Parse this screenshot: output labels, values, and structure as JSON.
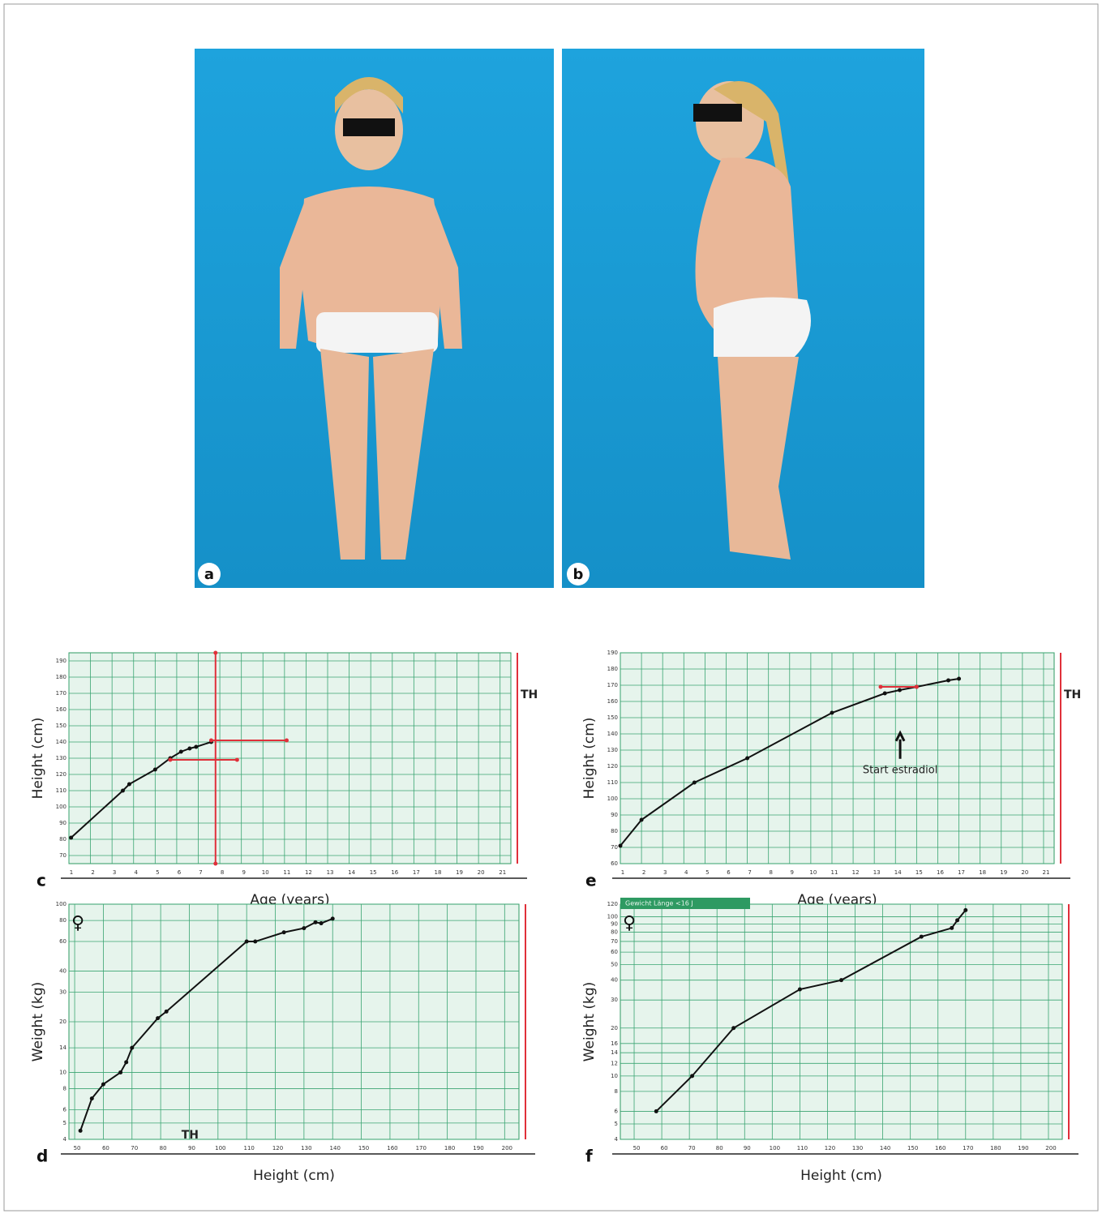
{
  "photos": [
    {
      "label": "a"
    },
    {
      "label": "b"
    }
  ],
  "chart_data": [
    {
      "type": "line",
      "panel_label": "c",
      "x_label": "Age (years)",
      "y_label": "Height (cm)",
      "th_label": "TH",
      "xlim": [
        1,
        21.5
      ],
      "xticks": [
        1,
        2,
        3,
        4,
        5,
        6,
        7,
        8,
        9,
        10,
        11,
        12,
        13,
        14,
        15,
        16,
        17,
        18,
        19,
        20,
        21
      ],
      "ylim": [
        65,
        195
      ],
      "yticks": [
        70,
        80,
        90,
        100,
        110,
        120,
        130,
        140,
        150,
        160,
        170,
        180,
        190
      ],
      "log_y": false,
      "grid": true,
      "series": [
        {
          "color": "#111111",
          "x": [
            1.1,
            3.5,
            3.8,
            5,
            5.7,
            6.2,
            6.6,
            6.9,
            7.6
          ],
          "values": [
            81,
            110,
            114,
            123,
            130,
            134,
            136,
            137,
            140
          ]
        },
        {
          "color": "#e0303a",
          "x": [
            7.6,
            11.1
          ],
          "values": [
            141,
            141
          ]
        },
        {
          "color": "#e0303a",
          "x": [
            5.7,
            8.8
          ],
          "values": [
            129,
            129
          ]
        },
        {
          "color": "#e0303a",
          "x": [
            7.8,
            7.8
          ],
          "values": [
            65,
            195
          ]
        }
      ]
    },
    {
      "type": "line",
      "panel_label": "d",
      "x_label": "Height (cm)",
      "y_label": "Weight (kg)",
      "th_label": "TH",
      "sex_symbol": "♀",
      "xlim": [
        48,
        205
      ],
      "xticks": [
        50,
        60,
        70,
        80,
        90,
        100,
        110,
        120,
        130,
        140,
        150,
        160,
        170,
        180,
        190,
        200
      ],
      "ylim": [
        4,
        100
      ],
      "yticks": [
        4,
        5,
        6,
        8,
        10,
        14,
        20,
        30,
        40,
        60,
        80,
        100
      ],
      "log_y": true,
      "grid": true,
      "series": [
        {
          "color": "#111111",
          "x": [
            52,
            56,
            60,
            66,
            68,
            70,
            79,
            82,
            110,
            113,
            123,
            130,
            134,
            136,
            140
          ],
          "values": [
            4.5,
            7,
            8.5,
            10,
            11.5,
            14,
            21,
            23,
            60,
            60,
            68,
            72,
            78,
            77,
            82
          ]
        }
      ]
    },
    {
      "type": "line",
      "panel_label": "e",
      "x_label": "Age (years)",
      "y_label": "Height (cm)",
      "th_label": "TH",
      "annotation": "Start estradiol",
      "xlim": [
        1,
        21.5
      ],
      "xticks": [
        1,
        2,
        3,
        4,
        5,
        6,
        7,
        8,
        9,
        10,
        11,
        12,
        13,
        14,
        15,
        16,
        17,
        18,
        19,
        20,
        21
      ],
      "ylim": [
        60,
        190
      ],
      "yticks": [
        60,
        70,
        80,
        90,
        100,
        110,
        120,
        130,
        140,
        150,
        160,
        170,
        180,
        190
      ],
      "log_y": false,
      "grid": true,
      "series": [
        {
          "color": "#111111",
          "x": [
            1,
            2,
            4.5,
            7,
            11,
            13.5,
            14.2,
            15,
            16.5,
            17
          ],
          "values": [
            71,
            87,
            110,
            125,
            153,
            165,
            167,
            169,
            173,
            174
          ]
        },
        {
          "color": "#e0303a",
          "x": [
            13.3,
            15
          ],
          "values": [
            169,
            169
          ]
        }
      ]
    },
    {
      "type": "line",
      "panel_label": "f",
      "x_label": "Height (cm)",
      "y_label": "Weight (kg)",
      "sex_symbol": "♀",
      "header": "Gewicht Länge <16 J",
      "xlim": [
        45,
        205
      ],
      "xticks": [
        50,
        60,
        70,
        80,
        90,
        100,
        110,
        120,
        130,
        140,
        150,
        160,
        170,
        180,
        190,
        200
      ],
      "ylim": [
        4,
        120
      ],
      "yticks": [
        4,
        5,
        6,
        8,
        10,
        12,
        14,
        16,
        20,
        30,
        40,
        50,
        60,
        70,
        80,
        90,
        100,
        120
      ],
      "log_y": true,
      "grid": true,
      "series": [
        {
          "color": "#111111",
          "x": [
            58,
            71,
            86,
            110,
            125,
            154,
            165,
            167,
            170
          ],
          "values": [
            6,
            10,
            20,
            35,
            40,
            75,
            85,
            95,
            110
          ]
        }
      ]
    }
  ]
}
